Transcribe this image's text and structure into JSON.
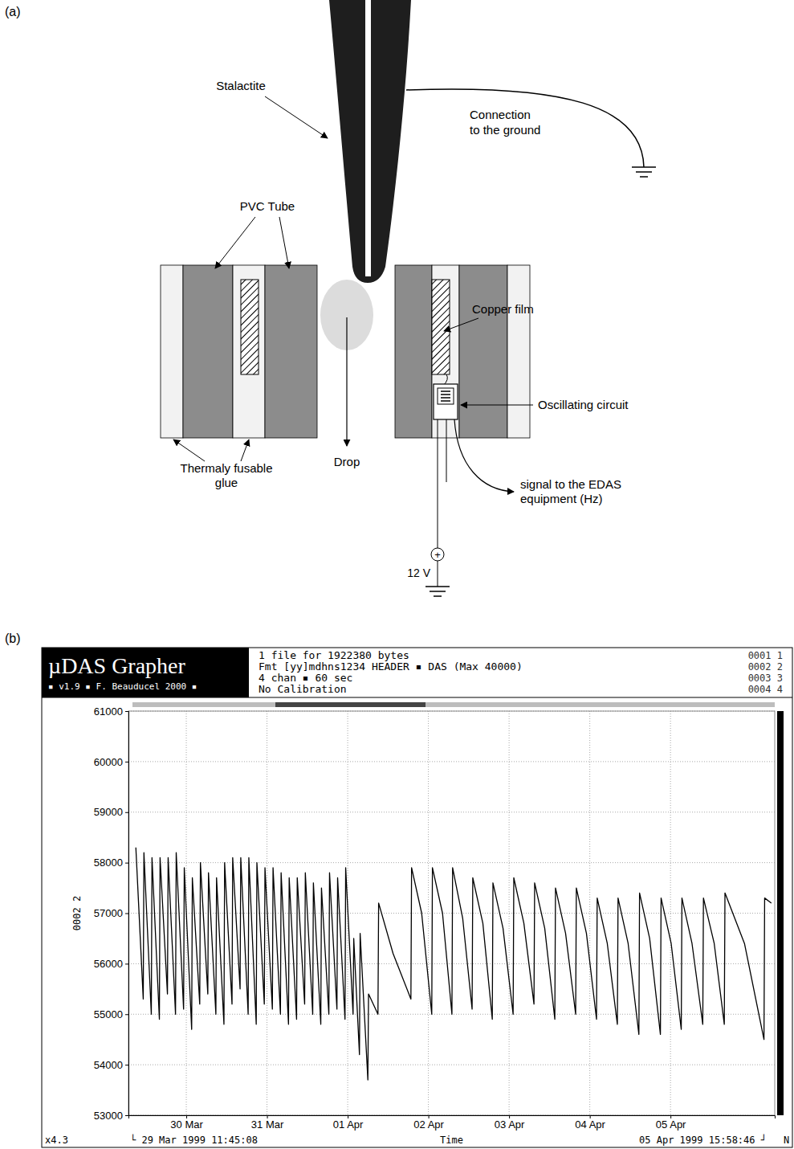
{
  "diagram": {
    "panel_label": "(a)",
    "labels": {
      "stalactite": "Stalactite",
      "ground": [
        "Connection",
        "to the ground"
      ],
      "pvc": "PVC Tube",
      "copper": "Copper film",
      "circuit": "Oscillating circuit",
      "drop": "Drop",
      "glue": [
        "Thermaly fusable",
        "glue"
      ],
      "plus": "+",
      "voltage": "12 V",
      "signal": [
        "signal to the EDAS",
        "equipment (Hz)"
      ]
    }
  },
  "screenshot": {
    "panel_label": "(b)",
    "app_title": "µDAS Grapher",
    "app_subtitle": "▪ v1.9 ▪ F. Beauducel 2000 ▪",
    "header_lines": [
      "1 file for 1922380 bytes",
      "Fmt [yy]mdhns1234 HEADER ▪ DAS (Max 40000)",
      "4 chan ▪ 60 sec",
      "No Calibration"
    ],
    "channels": [
      "0001 1",
      "0002 2",
      "0003 3",
      "0004 4"
    ],
    "zoom": "x4.3",
    "range_labels": [
      "└ 29 Mar 1999 11:45:08",
      "05 Apr 1999 15:58:46 ┘"
    ],
    "corner": "N"
  },
  "chart_data": {
    "type": "line",
    "x_label": "Time",
    "y_label": "0002 2",
    "color": "#000000",
    "grid": true,
    "xlim": [
      "1999-03-29T06:48",
      "1999-04-06T07:00"
    ],
    "ylim": [
      53000,
      61000
    ],
    "xticks": [
      {
        "value": "1999-03-30T00:00",
        "label": "30 Mar"
      },
      {
        "value": "1999-03-31T00:00",
        "label": "31 Mar"
      },
      {
        "value": "1999-04-01T00:00",
        "label": "01 Apr"
      },
      {
        "value": "1999-04-02T00:00",
        "label": "02 Apr"
      },
      {
        "value": "1999-04-03T00:00",
        "label": "03 Apr"
      },
      {
        "value": "1999-04-04T00:00",
        "label": "04 Apr"
      },
      {
        "value": "1999-04-05T00:00",
        "label": "05 Apr"
      }
    ],
    "yticks": [
      53000,
      54000,
      55000,
      56000,
      57000,
      58000,
      59000,
      60000,
      61000
    ],
    "x": [
      "1999-03-29T09:00",
      "1999-03-29T11:12",
      "1999-03-29T11:24",
      "1999-03-29T13:36",
      "1999-03-29T13:48",
      "1999-03-29T16:00",
      "1999-03-29T16:12",
      "1999-03-29T18:24",
      "1999-03-29T18:36",
      "1999-03-29T20:48",
      "1999-03-29T21:00",
      "1999-03-29T23:12",
      "1999-03-29T23:24",
      "1999-03-30T01:36",
      "1999-03-30T01:48",
      "1999-03-30T04:00",
      "1999-03-30T04:12",
      "1999-03-30T06:24",
      "1999-03-30T06:36",
      "1999-03-30T08:48",
      "1999-03-30T09:00",
      "1999-03-30T11:12",
      "1999-03-30T11:24",
      "1999-03-30T13:36",
      "1999-03-30T13:48",
      "1999-03-30T16:00",
      "1999-03-30T16:12",
      "1999-03-30T18:24",
      "1999-03-30T18:36",
      "1999-03-30T20:48",
      "1999-03-30T21:00",
      "1999-03-30T23:12",
      "1999-03-30T23:24",
      "1999-03-31T01:36",
      "1999-03-31T01:48",
      "1999-03-31T04:00",
      "1999-03-31T04:12",
      "1999-03-31T06:24",
      "1999-03-31T06:36",
      "1999-03-31T08:48",
      "1999-03-31T09:00",
      "1999-03-31T11:12",
      "1999-03-31T11:24",
      "1999-03-31T13:36",
      "1999-03-31T13:48",
      "1999-03-31T16:00",
      "1999-03-31T16:12",
      "1999-03-31T18:24",
      "1999-03-31T18:36",
      "1999-03-31T20:48",
      "1999-03-31T21:00",
      "1999-03-31T23:12",
      "1999-03-31T23:24",
      "1999-04-01T01:36",
      "1999-04-01T01:48",
      "1999-04-01T03:30",
      "1999-04-01T03:42",
      "1999-04-01T06:00",
      "1999-04-01T06:12",
      "1999-04-01T09:00",
      "1999-04-01T09:12",
      "1999-04-01T13:30",
      "1999-04-01T18:48",
      "1999-04-01T19:00",
      "1999-04-01T22:00",
      "1999-04-02T01:00",
      "1999-04-02T01:12",
      "1999-04-02T04:12",
      "1999-04-02T07:00",
      "1999-04-02T07:12",
      "1999-04-02T10:12",
      "1999-04-02T13:00",
      "1999-04-02T13:12",
      "1999-04-02T16:12",
      "1999-04-02T19:00",
      "1999-04-02T19:12",
      "1999-04-02T22:12",
      "1999-04-03T01:12",
      "1999-04-03T01:24",
      "1999-04-03T04:24",
      "1999-04-03T07:24",
      "1999-04-03T07:36",
      "1999-04-03T10:36",
      "1999-04-03T13:36",
      "1999-04-03T13:48",
      "1999-04-03T16:48",
      "1999-04-03T19:48",
      "1999-04-03T20:00",
      "1999-04-03T23:00",
      "1999-04-04T02:00",
      "1999-04-04T02:12",
      "1999-04-04T05:12",
      "1999-04-04T08:12",
      "1999-04-04T08:24",
      "1999-04-04T11:24",
      "1999-04-04T14:36",
      "1999-04-04T14:48",
      "1999-04-04T17:48",
      "1999-04-04T21:00",
      "1999-04-04T21:12",
      "1999-04-05T00:12",
      "1999-04-05T03:12",
      "1999-04-05T03:24",
      "1999-04-05T06:24",
      "1999-04-05T09:36",
      "1999-04-05T09:48",
      "1999-04-05T13:00",
      "1999-04-05T16:00",
      "1999-04-05T16:12",
      "1999-04-05T22:00",
      "1999-04-06T03:48",
      "1999-04-06T04:00",
      "1999-04-06T06:00"
    ],
    "values": [
      58300,
      55300,
      58200,
      55000,
      58100,
      54900,
      58100,
      55400,
      58100,
      55000,
      58200,
      55100,
      57900,
      54700,
      57700,
      55200,
      58000,
      55400,
      57800,
      55000,
      57700,
      54800,
      58000,
      55200,
      58100,
      55500,
      58100,
      55000,
      58100,
      54800,
      58000,
      55200,
      57900,
      55100,
      57900,
      55000,
      57800,
      54800,
      57700,
      54900,
      57700,
      55200,
      57800,
      55000,
      57600,
      54800,
      57500,
      55000,
      57800,
      55100,
      57700,
      54900,
      57900,
      55000,
      56500,
      54200,
      56600,
      53700,
      55400,
      55000,
      57200,
      56200,
      55300,
      57900,
      57000,
      55000,
      57900,
      57000,
      55000,
      57900,
      56900,
      55100,
      57700,
      56800,
      54900,
      57600,
      56700,
      55000,
      57700,
      56800,
      55200,
      57600,
      56700,
      54900,
      57500,
      56600,
      55000,
      57500,
      56600,
      54900,
      57300,
      56400,
      54800,
      57300,
      56400,
      54600,
      57400,
      56500,
      54600,
      57300,
      56400,
      54700,
      57300,
      56400,
      54800,
      57300,
      56400,
      54800,
      57400,
      56400,
      54500,
      57300,
      57200
    ]
  }
}
